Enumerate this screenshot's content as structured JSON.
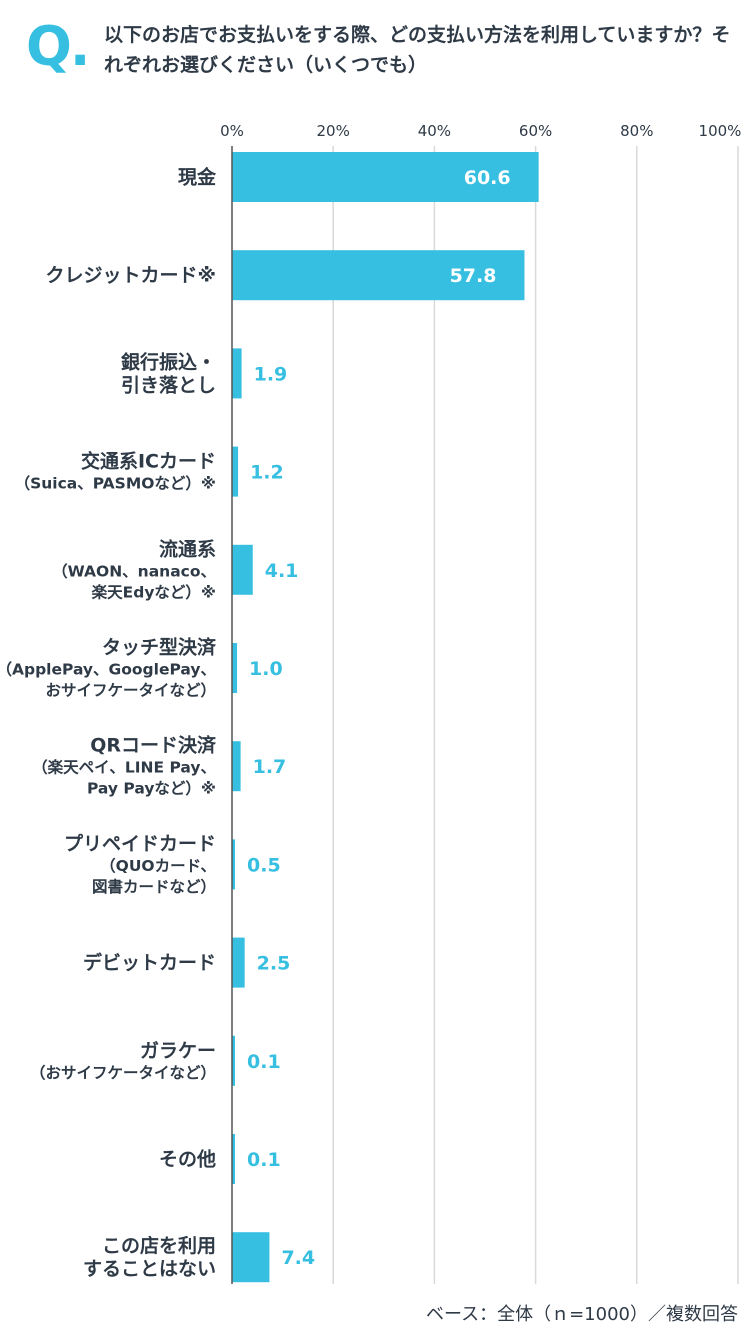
{
  "question": {
    "marker": "Q.",
    "text": "以下のお店でお支払いをする際、どの支払い方法を利用していますか？それぞれお選びください（いくつでも）"
  },
  "footnote": "ベース：全体（ｎ=1000）／複数回答",
  "colors": {
    "bar": "#36bfe0",
    "value_inside": "#ffffff",
    "value_outside": "#36bfe0",
    "text": "#2f3a47",
    "grid": "#d9d9d9",
    "axis": "#555555"
  },
  "chart_data": {
    "type": "bar",
    "orientation": "horizontal",
    "unit": "%",
    "xlim": [
      0,
      100
    ],
    "ticks": [
      "0%",
      "20%",
      "40%",
      "60%",
      "80%",
      "100%"
    ],
    "tick_values": [
      0,
      20,
      40,
      60,
      80,
      100
    ],
    "grid": true,
    "categories": [
      {
        "lines": [
          {
            "text": "現金",
            "main": true
          }
        ]
      },
      {
        "lines": [
          {
            "text": "クレジットカード※",
            "main": true
          }
        ]
      },
      {
        "lines": [
          {
            "text": "銀行振込・",
            "main": true
          },
          {
            "text": "引き落とし",
            "main": true
          }
        ]
      },
      {
        "lines": [
          {
            "text": "交通系ICカード",
            "main": true
          },
          {
            "text": "（Suica、PASMOなど）※",
            "main": false
          }
        ]
      },
      {
        "lines": [
          {
            "text": "流通系",
            "main": true
          },
          {
            "text": "（WAON、nanaco、",
            "main": false
          },
          {
            "text": "楽天Edyなど）※",
            "main": false
          }
        ]
      },
      {
        "lines": [
          {
            "text": "タッチ型決済",
            "main": true
          },
          {
            "text": "（ApplePay、GooglePay、",
            "main": false
          },
          {
            "text": "おサイフケータイなど）",
            "main": false
          }
        ]
      },
      {
        "lines": [
          {
            "text": "QRコード決済",
            "main": true
          },
          {
            "text": "（楽天ペイ、LINE Pay、",
            "main": false
          },
          {
            "text": "Pay Payなど）※",
            "main": false
          }
        ]
      },
      {
        "lines": [
          {
            "text": "プリペイドカード",
            "main": true
          },
          {
            "text": "（QUOカード、",
            "main": false
          },
          {
            "text": "図書カードなど）",
            "main": false
          }
        ]
      },
      {
        "lines": [
          {
            "text": "デビットカード",
            "main": true
          }
        ]
      },
      {
        "lines": [
          {
            "text": "ガラケー",
            "main": true
          },
          {
            "text": "（おサイフケータイなど）",
            "main": false
          }
        ]
      },
      {
        "lines": [
          {
            "text": "その他",
            "main": true
          }
        ]
      },
      {
        "lines": [
          {
            "text": "この店を利用",
            "main": true
          },
          {
            "text": "することはない",
            "main": true
          }
        ]
      }
    ],
    "values": [
      60.6,
      57.8,
      1.9,
      1.2,
      4.1,
      1.0,
      1.7,
      0.5,
      2.5,
      0.1,
      0.1,
      7.4
    ],
    "value_labels": [
      "60.6",
      "57.8",
      "1.9",
      "1.2",
      "4.1",
      "1.0",
      "1.7",
      "0.5",
      "2.5",
      "0.1",
      "0.1",
      "7.4"
    ]
  }
}
